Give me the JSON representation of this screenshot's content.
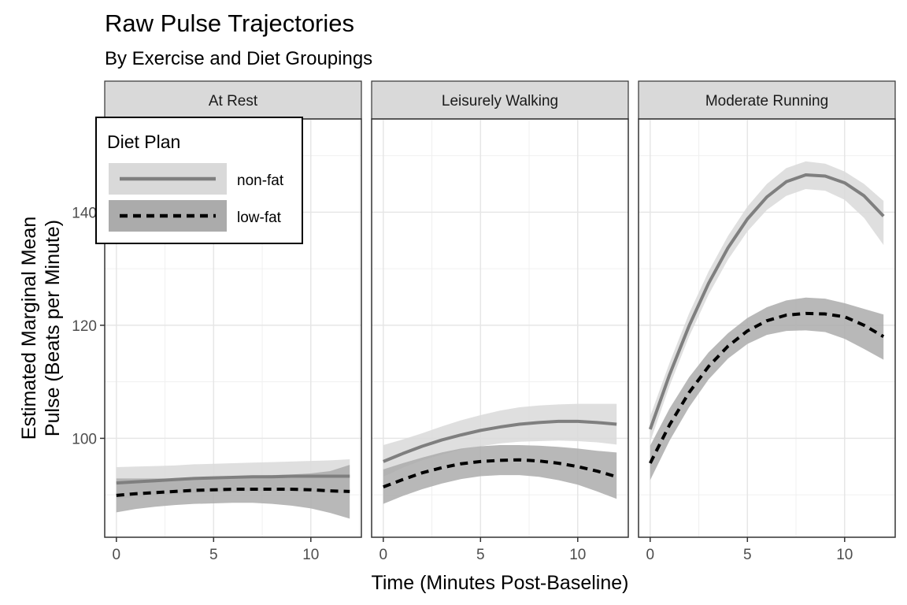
{
  "header": {
    "title": "Raw Pulse Trajectories",
    "subtitle": "By Exercise and Diet Groupings"
  },
  "legend": {
    "title": "Diet Plan",
    "entries": [
      {
        "label": "non-fat",
        "line": "solid",
        "line_color": "#7f7f7f",
        "band_color": "#d9d9d9"
      },
      {
        "label": "low-fat",
        "line": "dashed",
        "line_color": "#000000",
        "band_color": "#ababab"
      }
    ]
  },
  "chart_data": {
    "type": "line",
    "title": "Raw Pulse Trajectories",
    "subtitle": "By Exercise and Diet Groupings",
    "xlabel": "Time (Minutes Post-Baseline)",
    "ylabel": "Estimated Marginal Mean Pulse (Beats per Minute)",
    "ylabel_lines": [
      "Estimated Marginal Mean",
      "Pulse (Beats per Minute)"
    ],
    "xlim": [
      -0.6,
      12.6
    ],
    "ylim": [
      82.5,
      156.5
    ],
    "x_ticks": [
      0,
      5,
      10
    ],
    "y_ticks": [
      100,
      120,
      140
    ],
    "grid": true,
    "legend_position": "top-left",
    "x": [
      0,
      1,
      2,
      3,
      4,
      5,
      6,
      7,
      8,
      9,
      10,
      11,
      12
    ],
    "panels": [
      {
        "name": "At Rest",
        "series": [
          {
            "name": "non-fat",
            "values": [
              92.1,
              92.3,
              92.5,
              92.7,
              92.9,
              93.0,
              93.1,
              93.2,
              93.2,
              93.3,
              93.3,
              93.3,
              93.3
            ],
            "lower": [
              89.3,
              89.6,
              89.9,
              90.1,
              90.3,
              90.4,
              90.5,
              90.6,
              90.6,
              90.6,
              90.5,
              90.4,
              90.3
            ],
            "upper": [
              94.9,
              95.0,
              95.1,
              95.2,
              95.4,
              95.5,
              95.6,
              95.7,
              95.8,
              95.9,
              96.0,
              96.1,
              96.3
            ]
          },
          {
            "name": "low-fat",
            "values": [
              89.9,
              90.2,
              90.4,
              90.6,
              90.8,
              90.9,
              91.0,
              91.0,
              91.0,
              91.0,
              90.9,
              90.7,
              90.6
            ],
            "lower": [
              86.9,
              87.5,
              87.9,
              88.2,
              88.4,
              88.5,
              88.6,
              88.6,
              88.4,
              88.1,
              87.6,
              86.8,
              85.8
            ],
            "upper": [
              92.9,
              92.9,
              92.9,
              92.9,
              93.0,
              93.2,
              93.3,
              93.4,
              93.5,
              93.6,
              93.8,
              94.2,
              95.3
            ]
          }
        ]
      },
      {
        "name": "Leisurely Walking",
        "series": [
          {
            "name": "non-fat",
            "values": [
              95.9,
              97.3,
              98.6,
              99.7,
              100.6,
              101.4,
              102.0,
              102.5,
              102.8,
              103.0,
              103.0,
              102.8,
              102.5
            ],
            "lower": [
              93.2,
              94.8,
              96.1,
              97.1,
              98.0,
              98.6,
              99.1,
              99.4,
              99.5,
              99.6,
              99.5,
              99.3,
              98.9
            ],
            "upper": [
              98.8,
              99.8,
              100.9,
              102.1,
              103.2,
              104.1,
              104.9,
              105.5,
              105.8,
              106.0,
              106.1,
              106.1,
              106.1
            ]
          },
          {
            "name": "low-fat",
            "values": [
              91.4,
              92.7,
              93.9,
              94.8,
              95.5,
              95.9,
              96.1,
              96.2,
              96.0,
              95.6,
              95.0,
              94.2,
              93.2
            ],
            "lower": [
              88.4,
              89.8,
              91.0,
              92.0,
              92.8,
              93.3,
              93.5,
              93.5,
              93.2,
              92.6,
              91.8,
              90.6,
              89.3
            ],
            "upper": [
              94.5,
              95.6,
              96.6,
              97.5,
              98.2,
              98.6,
              98.8,
              98.8,
              98.7,
              98.5,
              98.2,
              97.8,
              97.5
            ]
          }
        ]
      },
      {
        "name": "Moderate Running",
        "series": [
          {
            "name": "non-fat",
            "values": [
              101.6,
              111.3,
              119.9,
              127.4,
              133.7,
              138.8,
              142.7,
              145.4,
              146.6,
              146.4,
              145.2,
              142.9,
              139.3
            ],
            "lower": [
              99.4,
              109.3,
              118.0,
              125.4,
              131.6,
              136.6,
              140.4,
              142.9,
              144.1,
              143.8,
              142.2,
              139.0,
              134.2
            ],
            "upper": [
              103.9,
              113.4,
              122.1,
              129.5,
              135.8,
              141.0,
              145.0,
              147.8,
              149.0,
              148.6,
              147.2,
              145.0,
              142.0
            ]
          },
          {
            "name": "low-fat",
            "values": [
              95.6,
              102.4,
              108.1,
              112.7,
              116.3,
              119.0,
              120.8,
              121.8,
              122.1,
              122.0,
              121.5,
              120.0,
              118.0
            ],
            "lower": [
              92.6,
              99.6,
              105.5,
              110.4,
              114.1,
              116.7,
              118.3,
              119.0,
              119.1,
              118.8,
              117.6,
              115.8,
              113.9
            ],
            "upper": [
              98.7,
              105.3,
              110.8,
              115.2,
              118.6,
              121.3,
              123.2,
              124.4,
              124.9,
              124.7,
              123.9,
              122.9,
              121.9
            ]
          }
        ]
      }
    ]
  }
}
